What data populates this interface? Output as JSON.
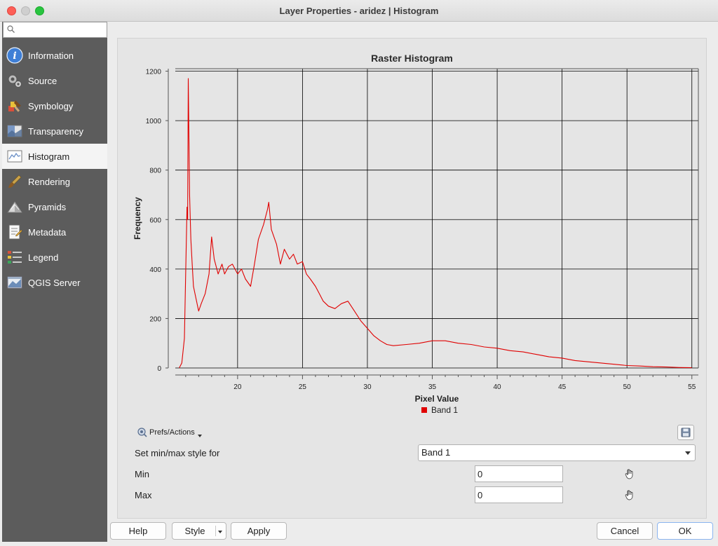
{
  "window": {
    "title": "Layer Properties - aridez | Histogram"
  },
  "search": {
    "placeholder": ""
  },
  "sidebar": {
    "items": [
      {
        "label": "Information",
        "icon": "information-icon",
        "active": false
      },
      {
        "label": "Source",
        "icon": "source-icon",
        "active": false
      },
      {
        "label": "Symbology",
        "icon": "symbology-icon",
        "active": false
      },
      {
        "label": "Transparency",
        "icon": "transparency-icon",
        "active": false
      },
      {
        "label": "Histogram",
        "icon": "histogram-icon",
        "active": true
      },
      {
        "label": "Rendering",
        "icon": "rendering-icon",
        "active": false
      },
      {
        "label": "Pyramids",
        "icon": "pyramids-icon",
        "active": false
      },
      {
        "label": "Metadata",
        "icon": "metadata-icon",
        "active": false
      },
      {
        "label": "Legend",
        "icon": "legend-icon",
        "active": false
      },
      {
        "label": "QGIS Server",
        "icon": "qgis-server-icon",
        "active": false
      }
    ]
  },
  "chart_data": {
    "type": "line",
    "title": "Raster Histogram",
    "xlabel": "Pixel Value",
    "ylabel": "Frequency",
    "xlim": [
      15.2,
      55.5
    ],
    "ylim": [
      0,
      1210
    ],
    "xticks": [
      20,
      25,
      30,
      35,
      40,
      45,
      50,
      55
    ],
    "yticks": [
      0,
      200,
      400,
      600,
      800,
      1000,
      1200
    ],
    "grid": true,
    "legend_position": "bottom",
    "series": [
      {
        "name": "Band 1",
        "color": "#e00000",
        "points": [
          [
            15.5,
            0
          ],
          [
            15.7,
            20
          ],
          [
            15.9,
            120
          ],
          [
            16.0,
            380
          ],
          [
            16.1,
            650
          ],
          [
            16.15,
            600
          ],
          [
            16.2,
            1170
          ],
          [
            16.3,
            700
          ],
          [
            16.4,
            520
          ],
          [
            16.5,
            420
          ],
          [
            16.6,
            330
          ],
          [
            16.8,
            280
          ],
          [
            17.0,
            230
          ],
          [
            17.2,
            260
          ],
          [
            17.5,
            300
          ],
          [
            17.8,
            380
          ],
          [
            18.0,
            530
          ],
          [
            18.2,
            440
          ],
          [
            18.5,
            380
          ],
          [
            18.8,
            420
          ],
          [
            19.0,
            380
          ],
          [
            19.3,
            410
          ],
          [
            19.6,
            420
          ],
          [
            20.0,
            380
          ],
          [
            20.3,
            400
          ],
          [
            20.6,
            360
          ],
          [
            21.0,
            330
          ],
          [
            21.3,
            420
          ],
          [
            21.6,
            520
          ],
          [
            22.0,
            580
          ],
          [
            22.3,
            640
          ],
          [
            22.4,
            670
          ],
          [
            22.6,
            560
          ],
          [
            23.0,
            500
          ],
          [
            23.3,
            420
          ],
          [
            23.6,
            480
          ],
          [
            24.0,
            440
          ],
          [
            24.3,
            460
          ],
          [
            24.6,
            420
          ],
          [
            25.0,
            430
          ],
          [
            25.3,
            380
          ],
          [
            25.6,
            360
          ],
          [
            26.0,
            330
          ],
          [
            26.3,
            300
          ],
          [
            26.6,
            270
          ],
          [
            27.0,
            250
          ],
          [
            27.5,
            240
          ],
          [
            28.0,
            260
          ],
          [
            28.5,
            270
          ],
          [
            29.0,
            230
          ],
          [
            29.5,
            190
          ],
          [
            30.0,
            160
          ],
          [
            30.5,
            130
          ],
          [
            31.0,
            110
          ],
          [
            31.5,
            95
          ],
          [
            32.0,
            90
          ],
          [
            33.0,
            95
          ],
          [
            34.0,
            100
          ],
          [
            35.0,
            110
          ],
          [
            36.0,
            110
          ],
          [
            37.0,
            100
          ],
          [
            38.0,
            95
          ],
          [
            39.0,
            85
          ],
          [
            40.0,
            80
          ],
          [
            41.0,
            70
          ],
          [
            42.0,
            65
          ],
          [
            43.0,
            55
          ],
          [
            44.0,
            45
          ],
          [
            45.0,
            40
          ],
          [
            46.0,
            30
          ],
          [
            47.0,
            25
          ],
          [
            48.0,
            20
          ],
          [
            49.0,
            15
          ],
          [
            50.0,
            10
          ],
          [
            51.0,
            8
          ],
          [
            52.0,
            5
          ],
          [
            53.0,
            4
          ],
          [
            54.0,
            2
          ],
          [
            55.0,
            1
          ]
        ]
      }
    ]
  },
  "controls": {
    "prefs_label": "Prefs/Actions",
    "minmax_label": "Set min/max style for",
    "minmax_value": "Band 1",
    "min_label": "Min",
    "min_value": "0",
    "max_label": "Max",
    "max_value": "0"
  },
  "buttons": {
    "help": "Help",
    "style": "Style",
    "apply": "Apply",
    "cancel": "Cancel",
    "ok": "OK"
  }
}
